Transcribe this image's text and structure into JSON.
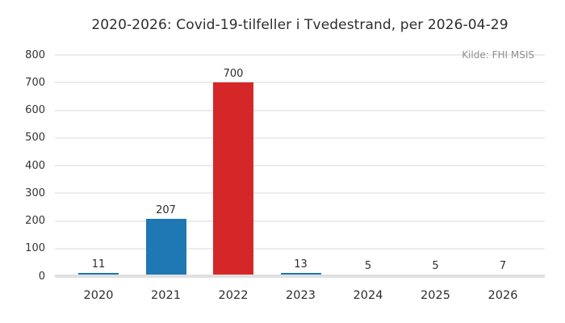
{
  "chart_data": {
    "type": "bar",
    "title": "2020-2026: Covid-19-tilfeller i Tvedestrand, per 2026-04-29",
    "source": "Kilde: FHI MSIS",
    "categories": [
      "2020",
      "2021",
      "2022",
      "2023",
      "2024",
      "2025",
      "2026"
    ],
    "values": [
      11,
      207,
      700,
      13,
      5,
      5,
      7
    ],
    "bar_labels": [
      "11",
      "207",
      "700",
      "13",
      "5",
      "5",
      "7"
    ],
    "bar_colors": [
      "#1f77b4",
      "#1f77b4",
      "#d62728",
      "#1f77b4",
      "#1f77b4",
      "#1f77b4",
      "#1f77b4"
    ],
    "highlight_category": "2022",
    "xlabel": "",
    "ylabel": "",
    "ylim": [
      0,
      800
    ],
    "yticks": [
      0,
      100,
      200,
      300,
      400,
      500,
      600,
      700,
      800
    ],
    "grid": true,
    "legend_position": "none"
  },
  "colors": {
    "background": "#ffffff",
    "bar_default": "#1f77b4",
    "bar_highlight": "#d62728",
    "gridline": "#ececec",
    "axis_line": "#e0e0e0",
    "title_text": "#2d2d2d",
    "tick_text": "#333333",
    "source_text": "#8f8f8f"
  }
}
